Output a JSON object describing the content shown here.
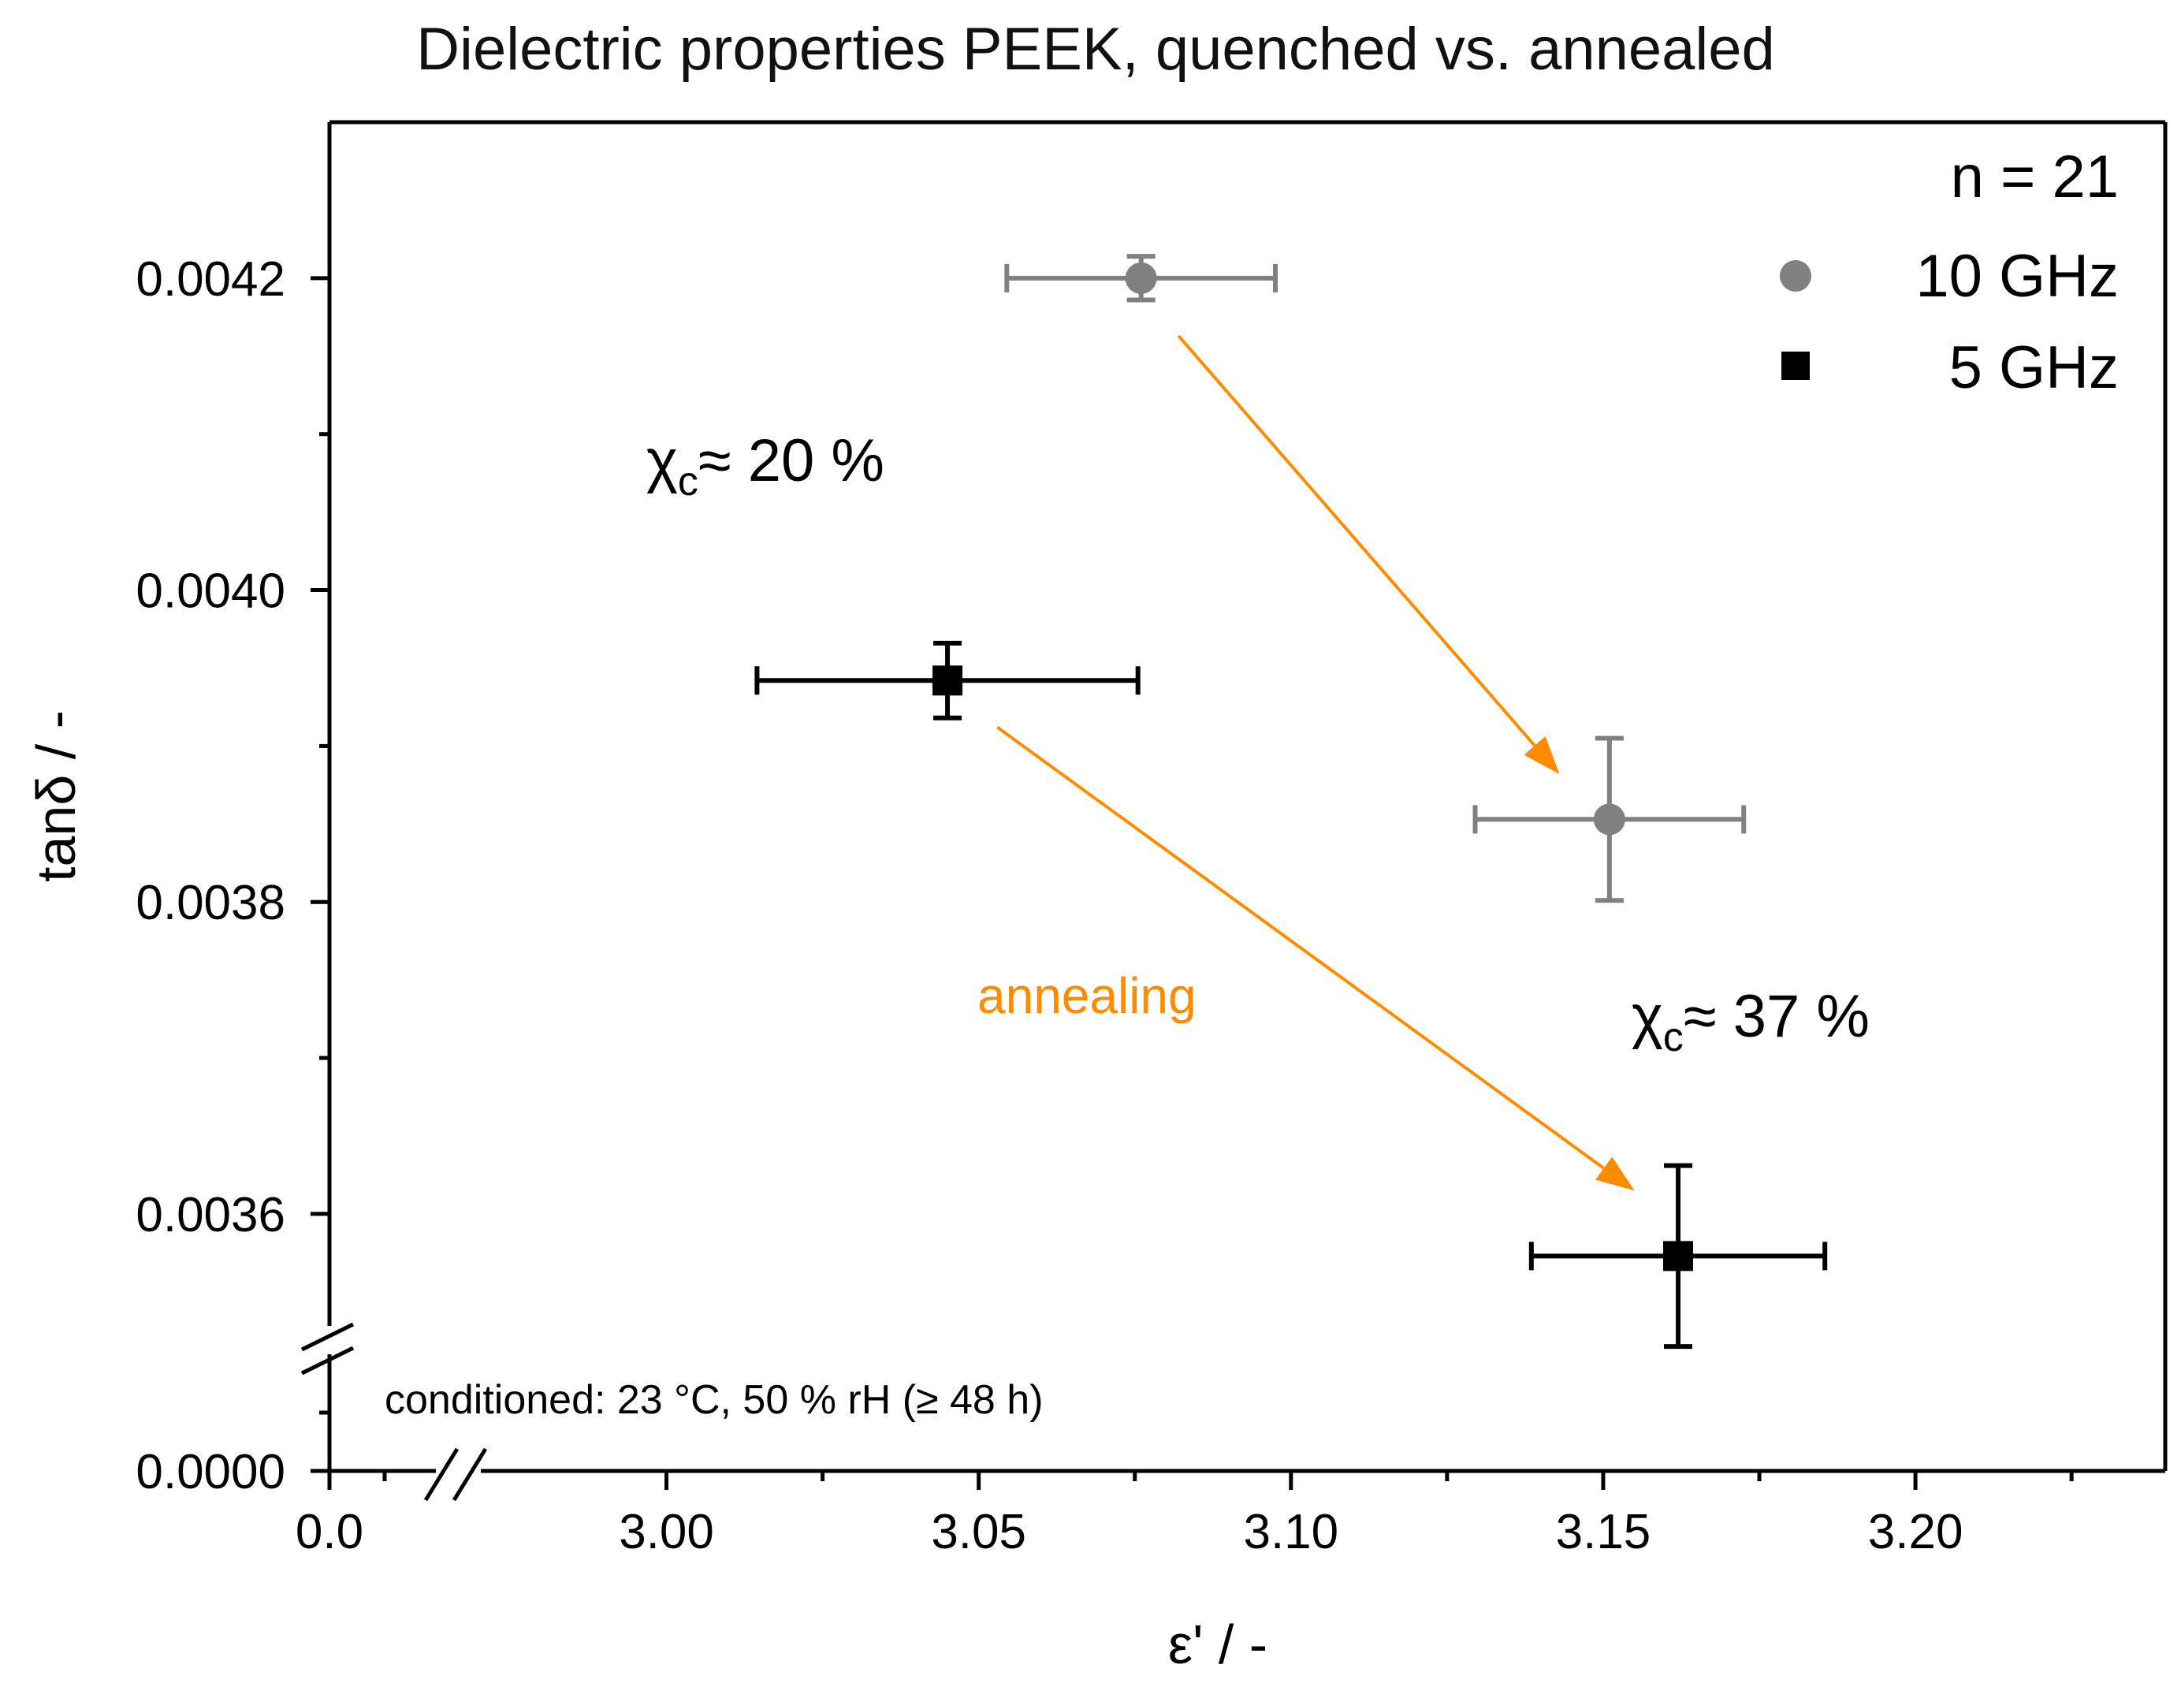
{
  "chart_data": {
    "type": "scatter",
    "title": "Dielectric properties PEEK, quenched vs. annealed",
    "xlabel": "ε'  /  -",
    "ylabel": "tanδ  /  -",
    "x_break": {
      "low_range": [
        0.0,
        0.0
      ],
      "high_range": [
        2.968,
        3.24
      ]
    },
    "y_break": {
      "low_range": [
        0.0,
        0.0
      ],
      "high_range": [
        0.00351,
        0.0043
      ]
    },
    "x_ticks": [
      {
        "value": 0.0,
        "label": "0.0"
      },
      {
        "value": 3.0,
        "label": "3.00"
      },
      {
        "value": 3.05,
        "label": "3.05"
      },
      {
        "value": 3.1,
        "label": "3.10"
      },
      {
        "value": 3.15,
        "label": "3.15"
      },
      {
        "value": 3.2,
        "label": "3.20"
      }
    ],
    "x_minor_ticks": [
      3.025,
      3.075,
      3.125,
      3.175,
      3.225
    ],
    "y_ticks": [
      {
        "value": 0.0,
        "label": "0.0000"
      },
      {
        "value": 0.0036,
        "label": "0.0036"
      },
      {
        "value": 0.0038,
        "label": "0.0038"
      },
      {
        "value": 0.004,
        "label": "0.0040"
      },
      {
        "value": 0.0042,
        "label": "0.0042"
      }
    ],
    "y_minor_ticks": [
      0.0037,
      0.0039,
      0.0041
    ],
    "series": [
      {
        "name": "10 GHz",
        "marker": "circle",
        "color": "#808080",
        "points": [
          {
            "x": 3.076,
            "y": 0.0042,
            "xerr": 0.0215,
            "yerr": 1.4e-05
          },
          {
            "x": 3.151,
            "y": 0.003853,
            "xerr": 0.0215,
            "yerr": 5.2e-05
          }
        ]
      },
      {
        "name": "5 GHz",
        "marker": "square",
        "color": "#000000",
        "points": [
          {
            "x": 3.045,
            "y": 0.003942,
            "xerr": 0.0305,
            "yerr": 2.4e-05
          },
          {
            "x": 3.162,
            "y": 0.003573,
            "xerr": 0.0235,
            "yerr": 5.8e-05
          }
        ]
      }
    ],
    "legend": {
      "position": "top-right",
      "title": "n = 21"
    },
    "annotations": {
      "quenched_label": {
        "prefix": "χ",
        "sub": "c",
        "text": "≈ 20 %"
      },
      "annealed_label": {
        "prefix": "χ",
        "sub": "c",
        "text": "≈ 37 %"
      },
      "arrow_label": "annealing",
      "conditions": "conditioned: 23 °C, 50 % rH (≥ 48 h)"
    },
    "arrows": [
      {
        "from": [
          3.082,
          0.004163
        ],
        "to": [
          3.143,
          0.003882
        ]
      },
      {
        "from": [
          3.053,
          0.003912
        ],
        "to": [
          3.155,
          0.003615
        ]
      }
    ],
    "colors": {
      "arrow": "#FF8C00",
      "axis": "#000000"
    }
  }
}
